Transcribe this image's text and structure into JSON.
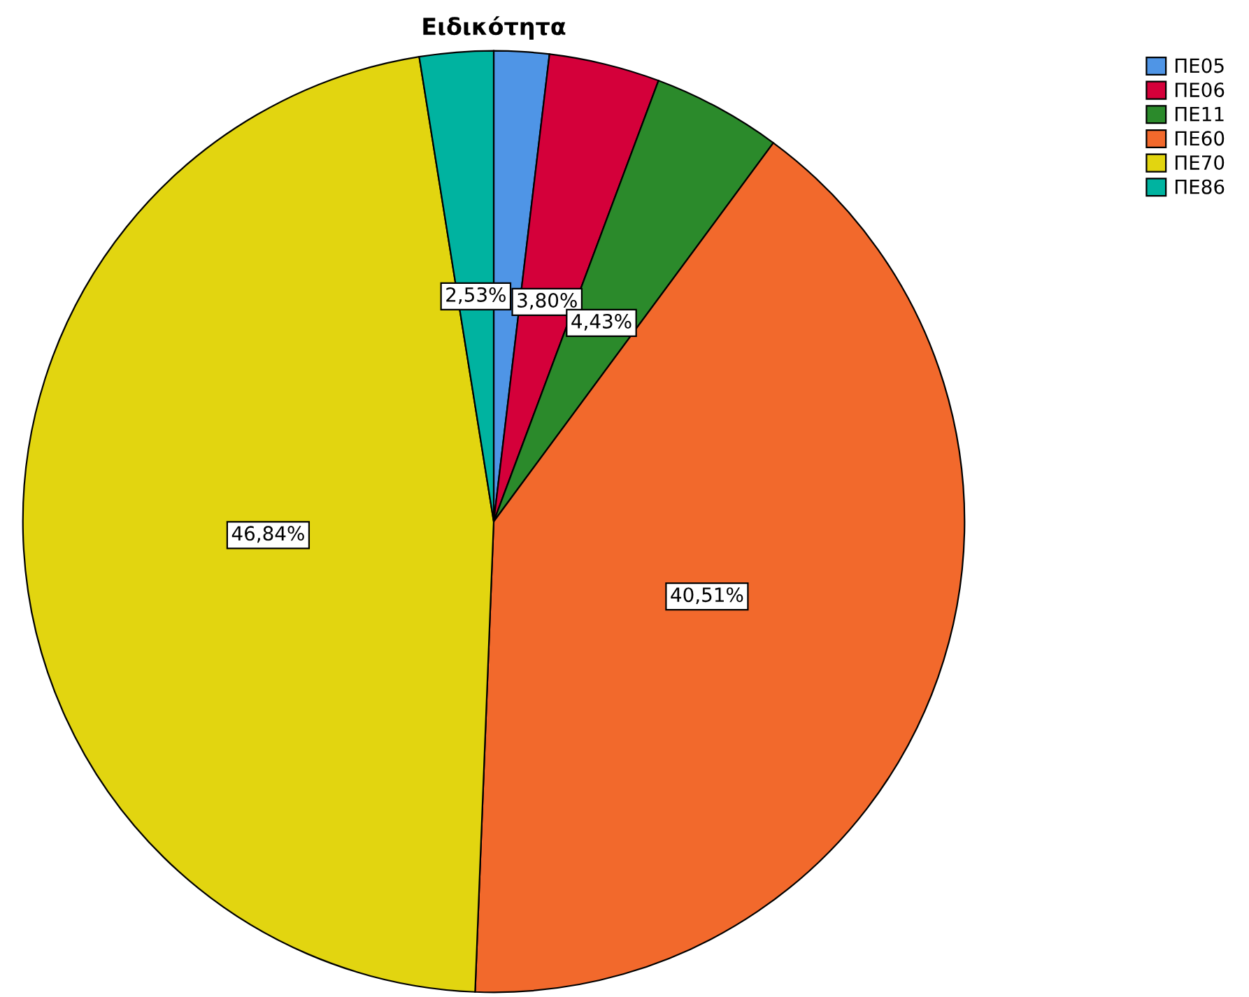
{
  "chart_data": {
    "type": "pie",
    "title": "Ειδικότητα",
    "categories": [
      "ΠΕ05",
      "ΠΕ06",
      "ΠΕ11",
      "ΠΕ60",
      "ΠΕ70",
      "ΠΕ86"
    ],
    "values": [
      1.89,
      3.8,
      4.43,
      40.51,
      46.84,
      2.53
    ],
    "value_labels": [
      null,
      "3,80%",
      "4,43%",
      "40,51%",
      "46,84%",
      "2,53%"
    ],
    "colors": [
      "#4f95e6",
      "#d4003a",
      "#2b8a2b",
      "#f2692c",
      "#e2d510",
      "#00b3a0"
    ],
    "legend": "top right"
  }
}
